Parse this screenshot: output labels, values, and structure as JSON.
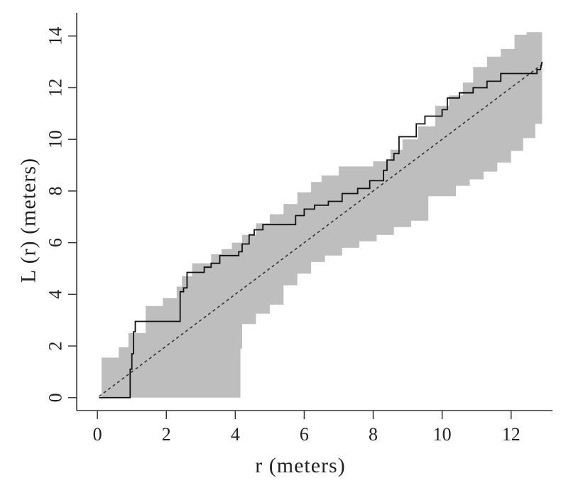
{
  "chart_data": {
    "type": "line",
    "title": "",
    "xlabel": "r   (meters)",
    "ylabel": "L (r)   (meters)",
    "xlim": [
      -0.6,
      13.2
    ],
    "ylim": [
      -0.5,
      14.9
    ],
    "x_ticks": [
      0,
      2,
      4,
      6,
      8,
      10,
      12
    ],
    "y_ticks": [
      0,
      2,
      4,
      6,
      8,
      10,
      12,
      14
    ],
    "grid": false,
    "legend": "none",
    "series": [
      {
        "role": "envelope",
        "color": "#bebebe",
        "upper": [
          [
            0.12,
            1.55
          ],
          [
            0.62,
            1.55
          ],
          [
            0.62,
            1.95
          ],
          [
            0.9,
            1.95
          ],
          [
            0.9,
            2.5
          ],
          [
            1.4,
            2.5
          ],
          [
            1.4,
            3.55
          ],
          [
            1.9,
            3.55
          ],
          [
            1.9,
            3.85
          ],
          [
            2.3,
            3.85
          ],
          [
            2.3,
            4.3
          ],
          [
            2.45,
            4.3
          ],
          [
            2.45,
            4.7
          ],
          [
            2.75,
            4.7
          ],
          [
            2.75,
            5.2
          ],
          [
            3.3,
            5.2
          ],
          [
            3.3,
            5.55
          ],
          [
            3.6,
            5.55
          ],
          [
            3.6,
            5.75
          ],
          [
            3.9,
            5.75
          ],
          [
            3.9,
            6.0
          ],
          [
            4.2,
            6.0
          ],
          [
            4.2,
            6.3
          ],
          [
            4.6,
            6.3
          ],
          [
            4.6,
            6.75
          ],
          [
            5.0,
            6.75
          ],
          [
            5.0,
            7.1
          ],
          [
            5.4,
            7.1
          ],
          [
            5.4,
            7.5
          ],
          [
            5.8,
            7.5
          ],
          [
            5.8,
            7.95
          ],
          [
            6.2,
            7.95
          ],
          [
            6.2,
            8.35
          ],
          [
            6.5,
            8.35
          ],
          [
            6.5,
            8.6
          ],
          [
            7.0,
            8.6
          ],
          [
            7.0,
            8.95
          ],
          [
            8.0,
            8.95
          ],
          [
            8.0,
            9.15
          ],
          [
            8.5,
            9.15
          ],
          [
            8.5,
            9.6
          ],
          [
            8.85,
            9.6
          ],
          [
            8.85,
            10.0
          ],
          [
            9.3,
            10.0
          ],
          [
            9.3,
            10.5
          ],
          [
            9.8,
            10.5
          ],
          [
            9.8,
            11.3
          ],
          [
            10.2,
            11.3
          ],
          [
            10.2,
            11.7
          ],
          [
            10.6,
            11.7
          ],
          [
            10.6,
            12.2
          ],
          [
            10.9,
            12.2
          ],
          [
            10.9,
            12.8
          ],
          [
            11.3,
            12.8
          ],
          [
            11.3,
            13.2
          ],
          [
            11.7,
            13.2
          ],
          [
            11.7,
            13.5
          ],
          [
            12.1,
            13.5
          ],
          [
            12.1,
            14.05
          ],
          [
            12.45,
            14.05
          ],
          [
            12.45,
            14.15
          ],
          [
            12.9,
            14.15
          ]
        ],
        "lower": [
          [
            12.9,
            10.6
          ],
          [
            12.7,
            10.6
          ],
          [
            12.7,
            10.05
          ],
          [
            12.35,
            10.05
          ],
          [
            12.35,
            9.55
          ],
          [
            12.0,
            9.55
          ],
          [
            12.0,
            9.1
          ],
          [
            11.6,
            9.1
          ],
          [
            11.6,
            8.75
          ],
          [
            11.2,
            8.75
          ],
          [
            11.2,
            8.45
          ],
          [
            10.8,
            8.45
          ],
          [
            10.8,
            8.2
          ],
          [
            10.4,
            8.2
          ],
          [
            10.4,
            7.8
          ],
          [
            9.6,
            7.8
          ],
          [
            9.6,
            6.85
          ],
          [
            9.1,
            6.85
          ],
          [
            9.1,
            6.6
          ],
          [
            8.6,
            6.6
          ],
          [
            8.6,
            6.3
          ],
          [
            8.1,
            6.3
          ],
          [
            8.1,
            6.05
          ],
          [
            7.6,
            6.05
          ],
          [
            7.6,
            5.8
          ],
          [
            7.1,
            5.8
          ],
          [
            7.1,
            5.5
          ],
          [
            6.6,
            5.5
          ],
          [
            6.6,
            5.25
          ],
          [
            6.2,
            5.25
          ],
          [
            6.2,
            4.8
          ],
          [
            5.8,
            4.8
          ],
          [
            5.8,
            4.35
          ],
          [
            5.4,
            4.35
          ],
          [
            5.4,
            3.6
          ],
          [
            5.0,
            3.6
          ],
          [
            5.0,
            3.25
          ],
          [
            4.6,
            3.25
          ],
          [
            4.6,
            2.85
          ],
          [
            4.2,
            2.85
          ],
          [
            4.2,
            2.35
          ],
          [
            4.2,
            1.9
          ],
          [
            4.15,
            1.9
          ],
          [
            4.15,
            0
          ],
          [
            0.12,
            0
          ]
        ]
      },
      {
        "role": "expected",
        "color": "#333333",
        "points": [
          [
            0.05,
            0.05
          ],
          [
            12.9,
            12.9
          ]
        ]
      },
      {
        "role": "observed",
        "color": "#111111",
        "points": [
          [
            0.05,
            0
          ],
          [
            0.95,
            0
          ],
          [
            0.95,
            1.1
          ],
          [
            1.0,
            1.1
          ],
          [
            1.0,
            1.7
          ],
          [
            1.05,
            1.7
          ],
          [
            1.05,
            2.55
          ],
          [
            1.1,
            2.55
          ],
          [
            1.1,
            2.95
          ],
          [
            2.4,
            2.95
          ],
          [
            2.4,
            4.1
          ],
          [
            2.5,
            4.1
          ],
          [
            2.5,
            4.25
          ],
          [
            2.6,
            4.25
          ],
          [
            2.6,
            4.85
          ],
          [
            3.1,
            4.85
          ],
          [
            3.1,
            5.05
          ],
          [
            3.3,
            5.05
          ],
          [
            3.3,
            5.2
          ],
          [
            3.55,
            5.2
          ],
          [
            3.55,
            5.5
          ],
          [
            4.1,
            5.5
          ],
          [
            4.1,
            5.65
          ],
          [
            4.2,
            5.65
          ],
          [
            4.2,
            5.95
          ],
          [
            4.4,
            5.95
          ],
          [
            4.4,
            6.3
          ],
          [
            4.55,
            6.3
          ],
          [
            4.55,
            6.5
          ],
          [
            4.8,
            6.5
          ],
          [
            4.8,
            6.7
          ],
          [
            5.75,
            6.7
          ],
          [
            5.75,
            7.05
          ],
          [
            6.0,
            7.05
          ],
          [
            6.0,
            7.3
          ],
          [
            6.3,
            7.3
          ],
          [
            6.3,
            7.45
          ],
          [
            6.7,
            7.45
          ],
          [
            6.7,
            7.6
          ],
          [
            7.1,
            7.6
          ],
          [
            7.1,
            7.9
          ],
          [
            7.55,
            7.9
          ],
          [
            7.55,
            8.1
          ],
          [
            7.9,
            8.1
          ],
          [
            7.9,
            8.4
          ],
          [
            8.3,
            8.4
          ],
          [
            8.3,
            8.8
          ],
          [
            8.4,
            8.8
          ],
          [
            8.4,
            9.2
          ],
          [
            8.6,
            9.2
          ],
          [
            8.6,
            9.45
          ],
          [
            8.75,
            9.45
          ],
          [
            8.75,
            10.1
          ],
          [
            9.25,
            10.1
          ],
          [
            9.25,
            10.6
          ],
          [
            9.5,
            10.6
          ],
          [
            9.5,
            10.9
          ],
          [
            10.0,
            10.9
          ],
          [
            10.0,
            11.15
          ],
          [
            10.15,
            11.15
          ],
          [
            10.15,
            11.6
          ],
          [
            10.5,
            11.6
          ],
          [
            10.5,
            11.8
          ],
          [
            10.9,
            11.8
          ],
          [
            10.9,
            12.0
          ],
          [
            11.3,
            12.0
          ],
          [
            11.3,
            12.25
          ],
          [
            11.7,
            12.25
          ],
          [
            11.7,
            12.55
          ],
          [
            12.75,
            12.55
          ],
          [
            12.75,
            12.7
          ],
          [
            12.85,
            12.7
          ],
          [
            12.9,
            13.0
          ]
        ]
      }
    ]
  }
}
